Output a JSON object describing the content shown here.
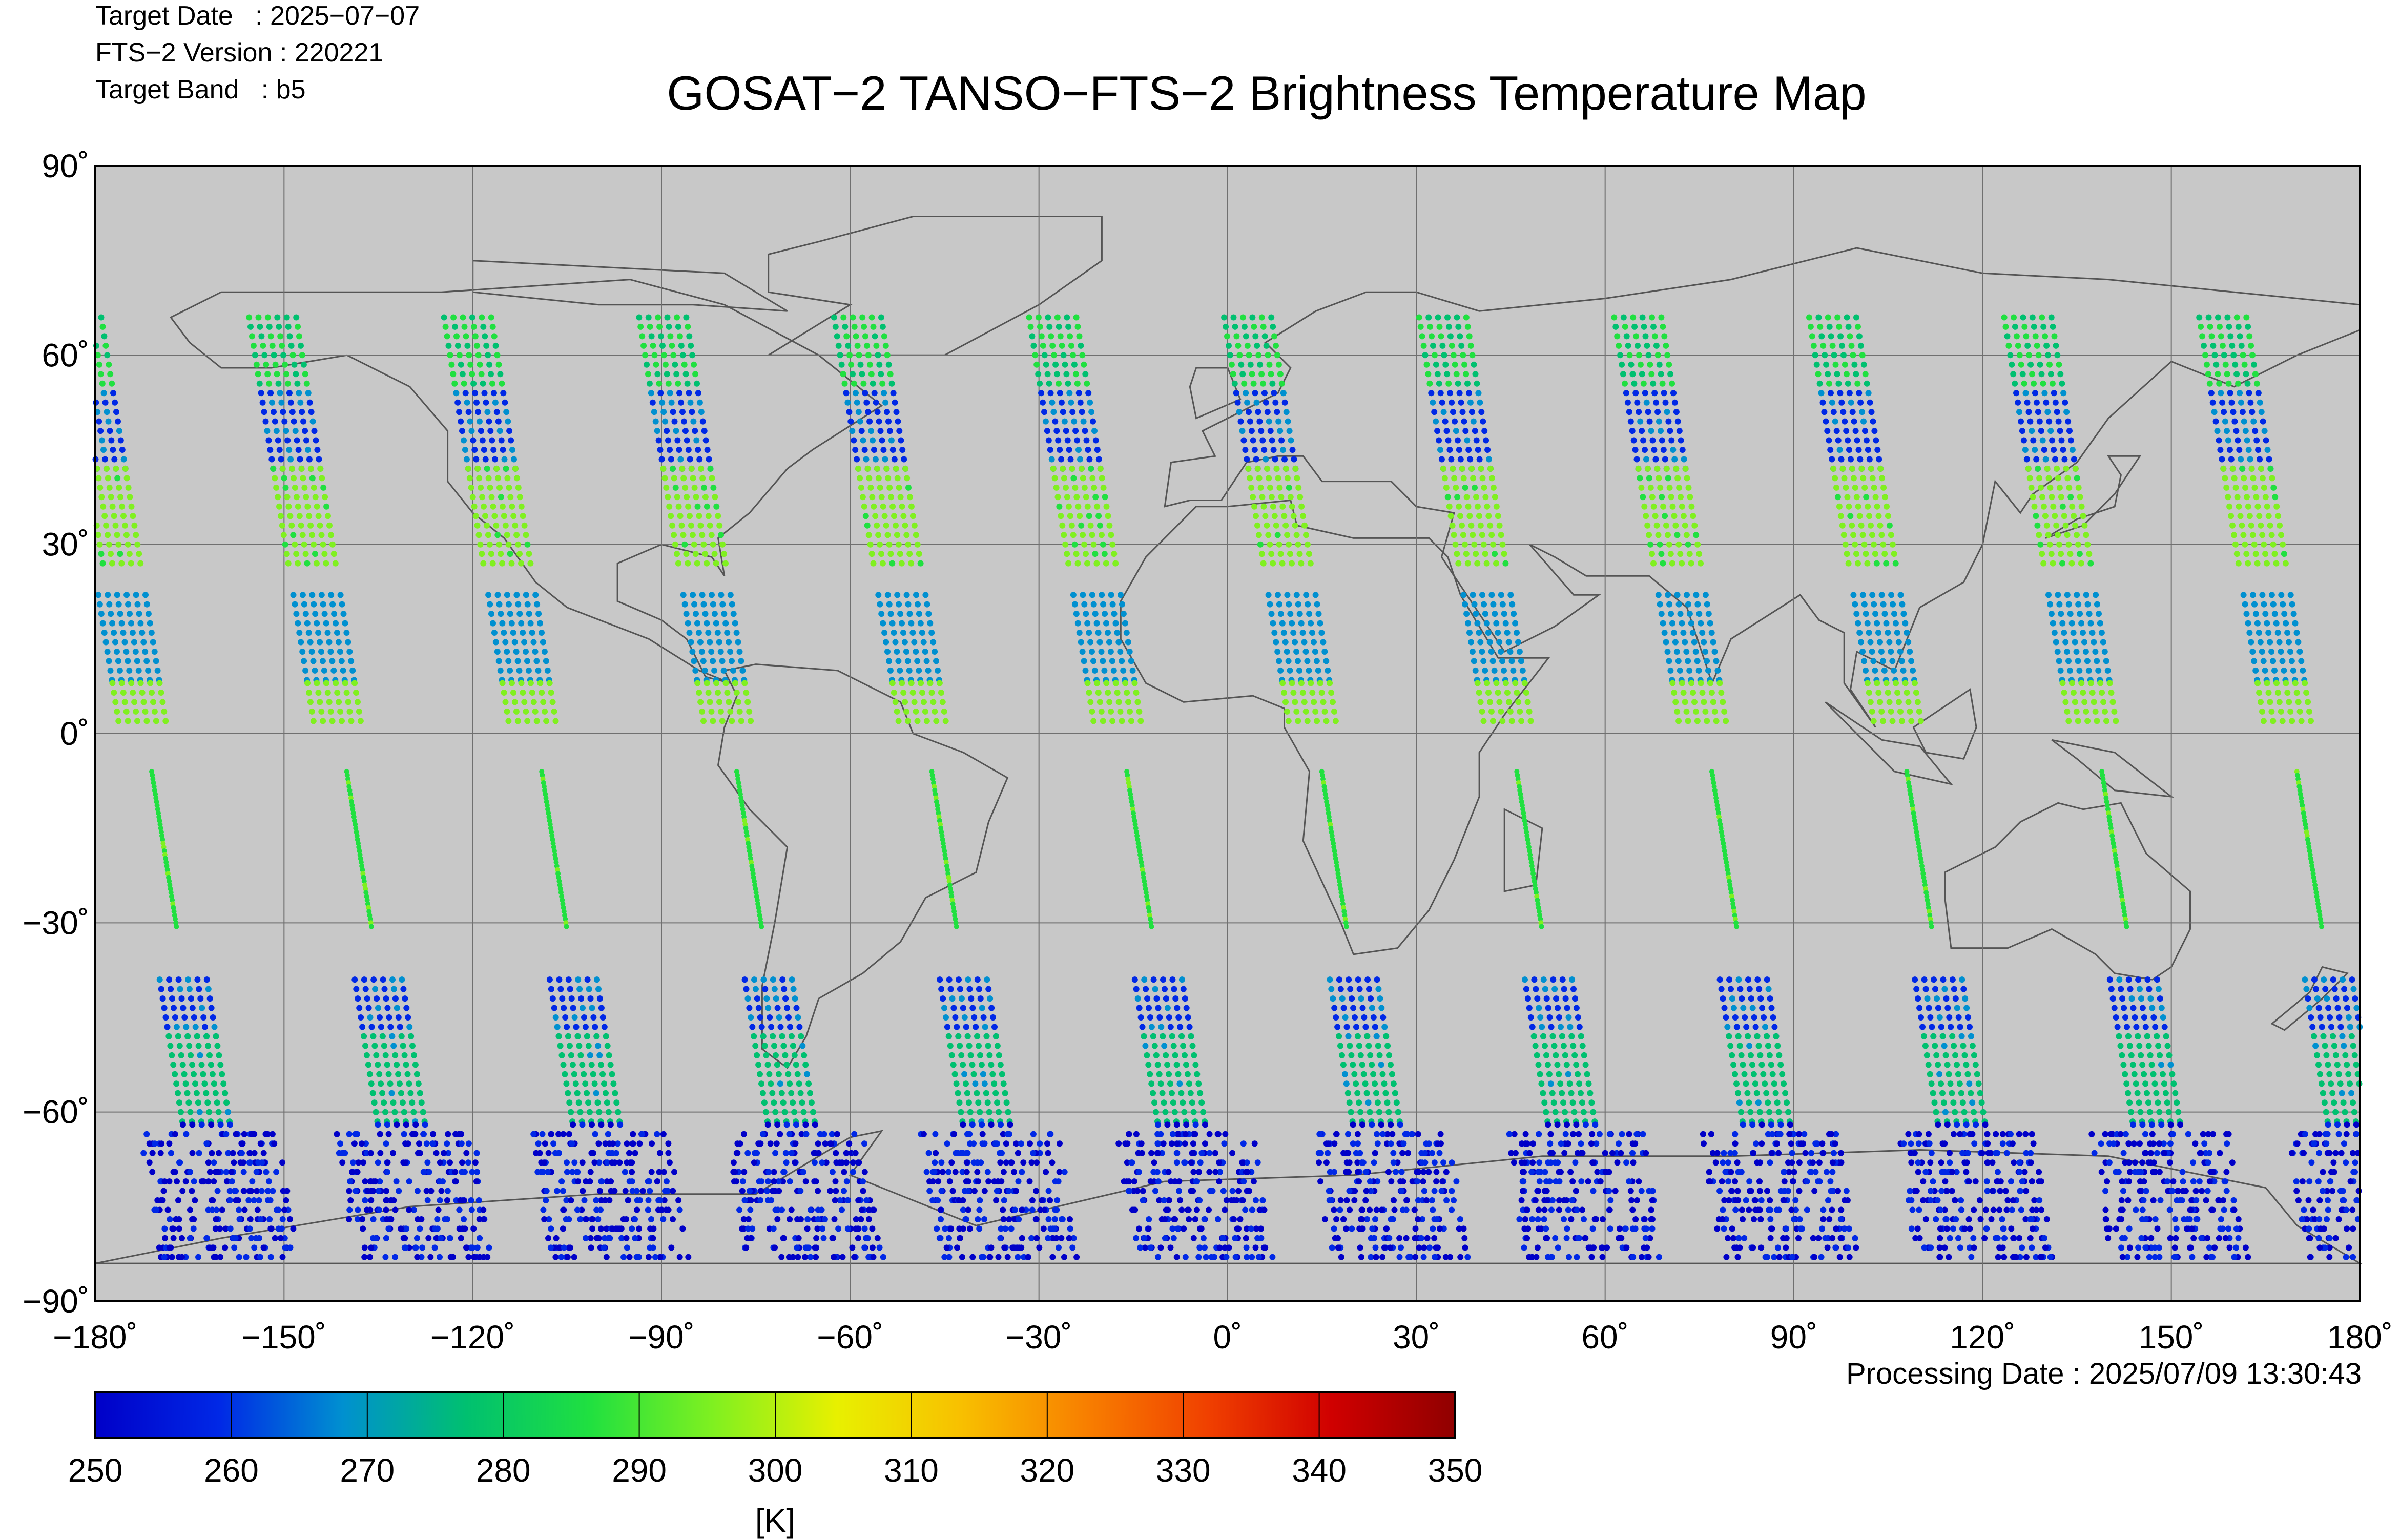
{
  "header": {
    "target_date": "Target Date   : 2025−07−07",
    "version": "FTS−2 Version : 220221",
    "band": "Target Band   : b5"
  },
  "title": "GOSAT−2 TANSO−FTS−2 Brightness Temperature Map",
  "processing_date": "Processing Date : 2025/07/09 13:30:43",
  "map": {
    "background": "#c8c8c8",
    "lat_range": [
      -90,
      90
    ],
    "lon_range": [
      -180,
      180
    ],
    "lat_ticks": [
      "90˚",
      "60˚",
      "30˚",
      "0˚",
      "−30˚",
      "−60˚",
      "−90˚"
    ],
    "lon_ticks": [
      "−180˚",
      "−150˚",
      "−120˚",
      "−90˚",
      "−60˚",
      "−30˚",
      "0˚",
      "30˚",
      "60˚",
      "90˚",
      "120˚",
      "150˚",
      "180˚"
    ]
  },
  "colorbar": {
    "min": 250,
    "max": 350,
    "ticks": [
      "250",
      "260",
      "270",
      "280",
      "290",
      "300",
      "310",
      "320",
      "330",
      "340",
      "350"
    ],
    "unit": "[K]",
    "colors": [
      "#0000c8",
      "#0028e6",
      "#0090d0",
      "#00c070",
      "#20e040",
      "#80f020",
      "#e8f000",
      "#f8c000",
      "#f88000",
      "#f04000",
      "#d00000",
      "#900000"
    ]
  },
  "observation_tracks": {
    "descending_swath_center_lons": [
      -172,
      -141,
      -110,
      -79,
      -48,
      -17,
      14,
      45,
      76,
      107,
      138,
      169
    ],
    "segments": [
      {
        "lat_from": 66,
        "lat_to": 54,
        "temp_K": 282
      },
      {
        "lat_from": 54,
        "lat_to": 42,
        "temp_K": 262
      },
      {
        "lat_from": 42,
        "lat_to": 26,
        "temp_K": 294
      },
      {
        "lat_from": 22,
        "lat_to": 8,
        "temp_K": 268
      },
      {
        "lat_from": 8,
        "lat_to": 2,
        "temp_K": 296
      },
      {
        "lat_from": -6,
        "lat_to": -31,
        "temp_K": 288
      },
      {
        "lat_from": -39,
        "lat_to": -48,
        "temp_K": 262
      },
      {
        "lat_from": -48,
        "lat_to": -62,
        "temp_K": 276
      },
      {
        "lat_from": -62,
        "lat_to": -83,
        "temp_K": 254
      }
    ]
  }
}
